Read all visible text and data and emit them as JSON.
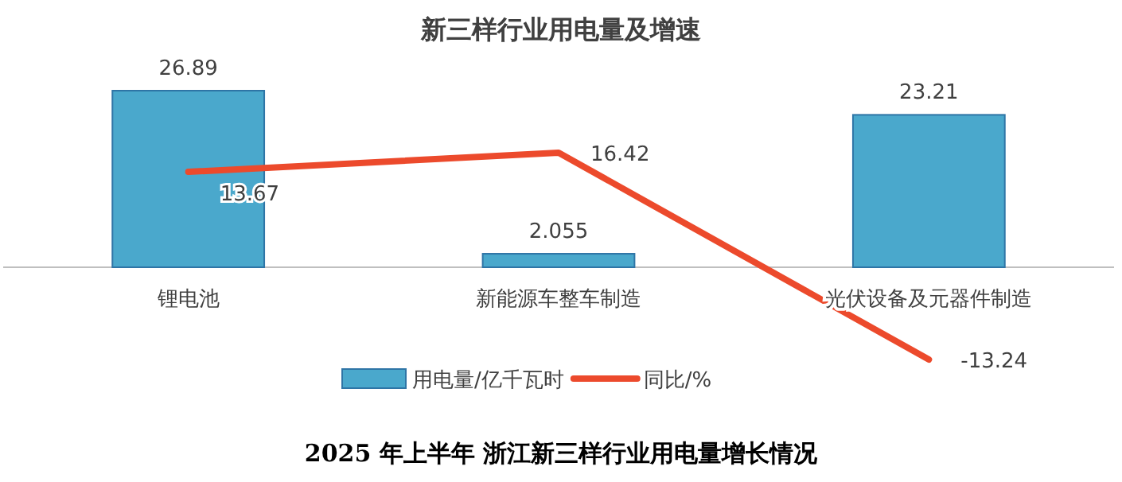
{
  "chart_data": {
    "type": "bar",
    "title": "新三样行业用电量及增速",
    "categories": [
      "锂电池",
      "新能源车整车制造",
      "光伏设备及元器件制造"
    ],
    "series": [
      {
        "name": "用电量/亿千瓦时",
        "color": "#4aa8cc",
        "values": [
          26.89,
          2.055,
          23.21
        ]
      },
      {
        "name": "同比/%",
        "type": "line",
        "axis": "y2",
        "color": "#ec4a2c",
        "values": [
          13.67,
          16.42,
          -13.24
        ]
      }
    ],
    "data_labels": true,
    "legend": "bottom",
    "marker": "none",
    "line_style": "solid",
    "annotations": [
      "2025 年上半年 浙江新三样行业用电量增长情况"
    ]
  }
}
